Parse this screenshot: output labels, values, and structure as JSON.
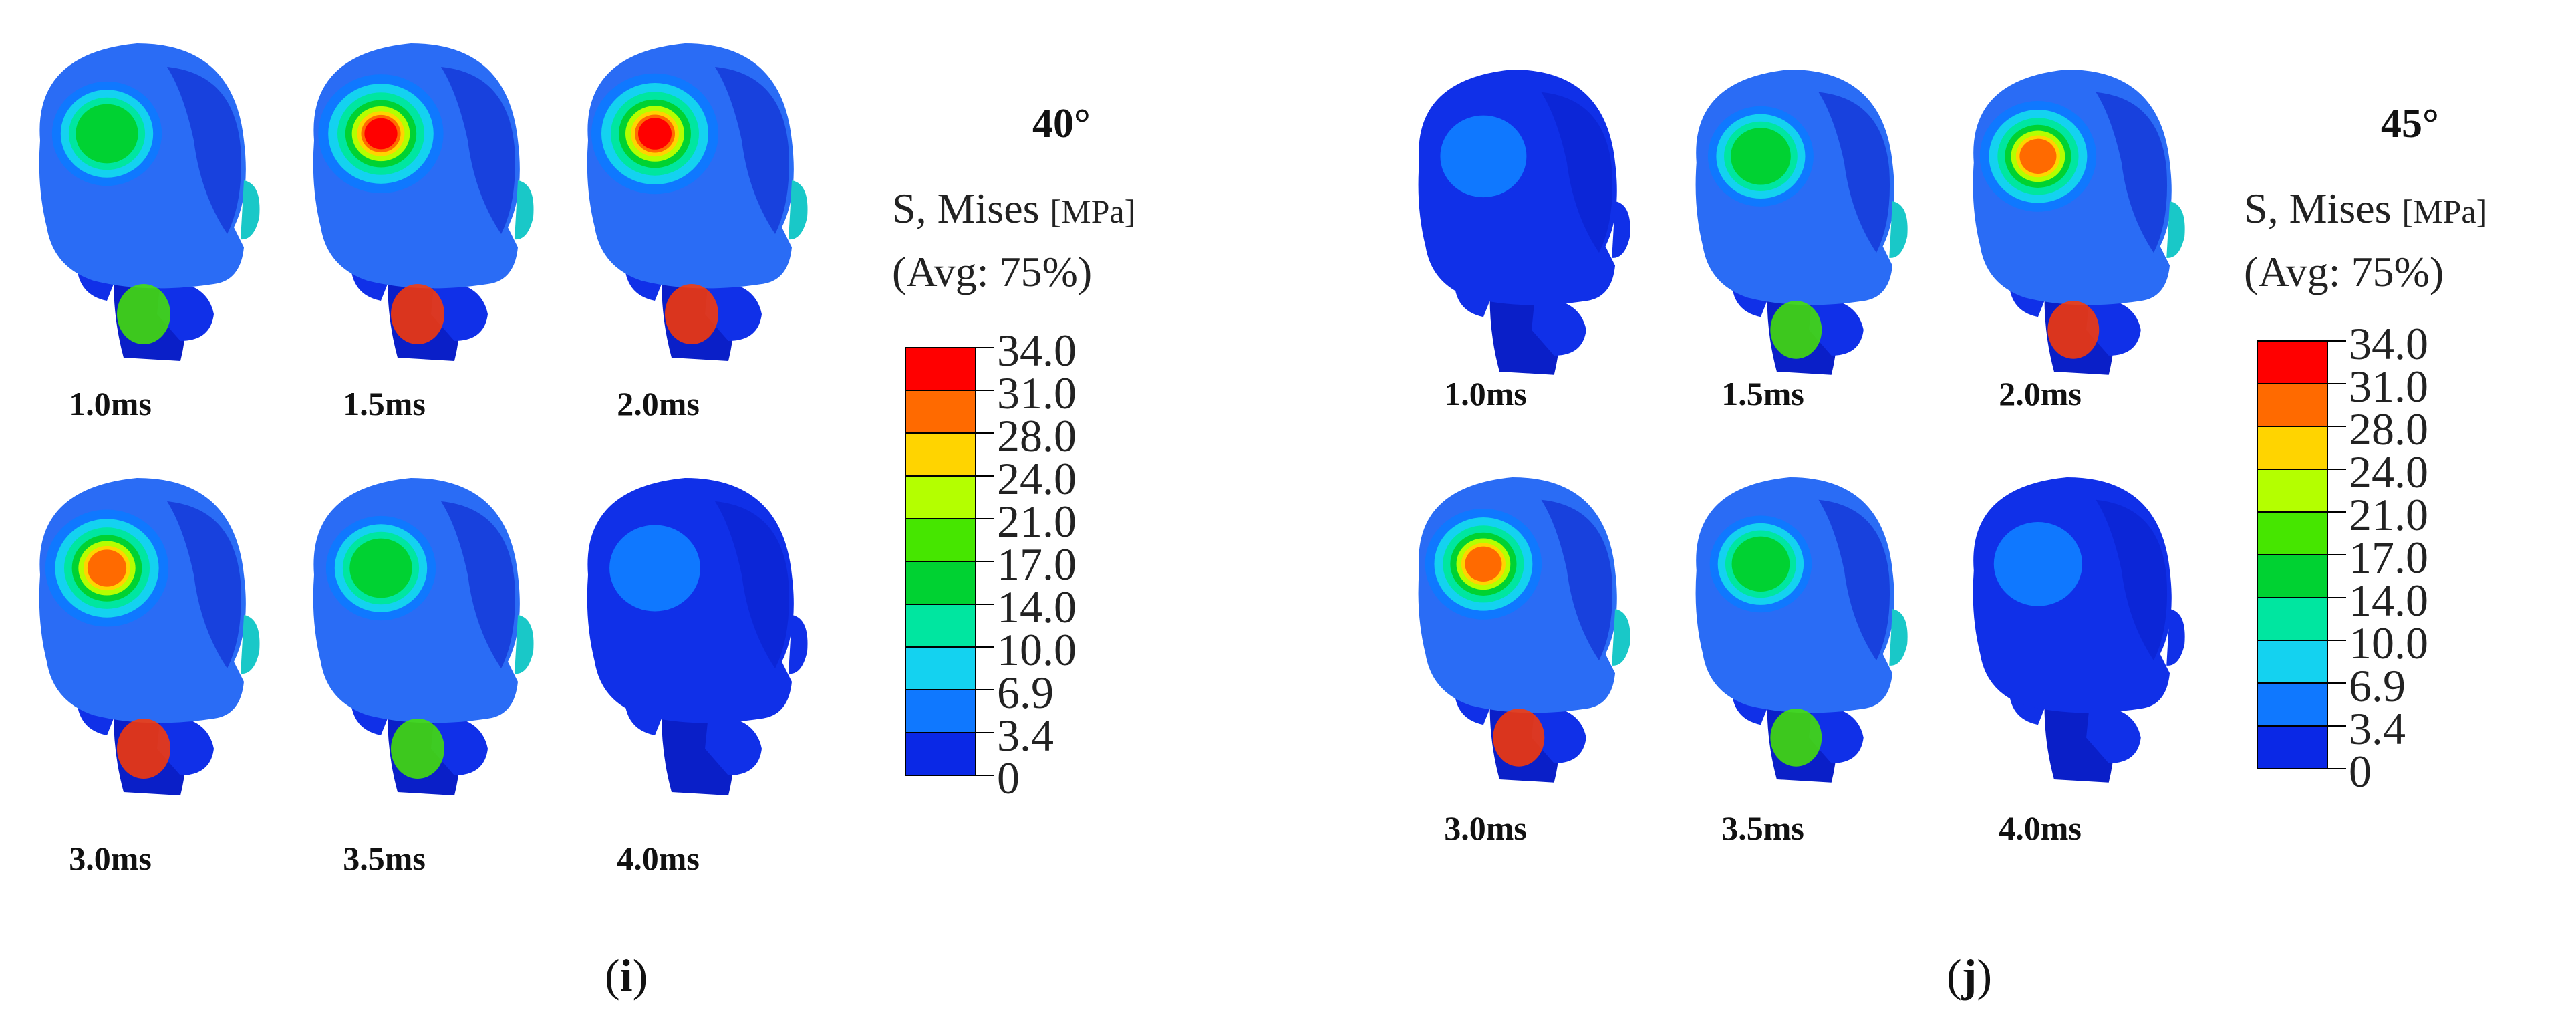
{
  "panels": [
    {
      "letter": "i",
      "angle": "40°",
      "legend": {
        "title": "S, Mises",
        "unit": "[MPa]",
        "avg": "(Avg: 75%)"
      },
      "frames": [
        {
          "time": "1.0ms",
          "hotspot_level": 0.55
        },
        {
          "time": "1.5ms",
          "hotspot_level": 0.95
        },
        {
          "time": "2.0ms",
          "hotspot_level": 1.0
        },
        {
          "time": "3.0ms",
          "hotspot_level": 0.9
        },
        {
          "time": "3.5ms",
          "hotspot_level": 0.55
        },
        {
          "time": "4.0ms",
          "hotspot_level": 0.05
        }
      ]
    },
    {
      "letter": "j",
      "angle": "45°",
      "legend": {
        "title": "S, Mises",
        "unit": "[MPa]",
        "avg": "(Avg: 75%)"
      },
      "frames": [
        {
          "time": "1.0ms",
          "hotspot_level": 0.02
        },
        {
          "time": "1.5ms",
          "hotspot_level": 0.55
        },
        {
          "time": "2.0ms",
          "hotspot_level": 0.85
        },
        {
          "time": "3.0ms",
          "hotspot_level": 0.85
        },
        {
          "time": "3.5ms",
          "hotspot_level": 0.45
        },
        {
          "time": "4.0ms",
          "hotspot_level": 0.08
        }
      ]
    }
  ],
  "colorbar": {
    "labels": [
      "34.0",
      "31.0",
      "28.0",
      "24.0",
      "21.0",
      "17.0",
      "14.0",
      "10.0",
      "6.9",
      "3.4",
      "0"
    ],
    "colors": [
      "#ff0000",
      "#ff6a00",
      "#ffd400",
      "#b4ff00",
      "#46e600",
      "#00d232",
      "#00e6a0",
      "#14d2f0",
      "#0f78ff",
      "#0a28e6"
    ]
  }
}
